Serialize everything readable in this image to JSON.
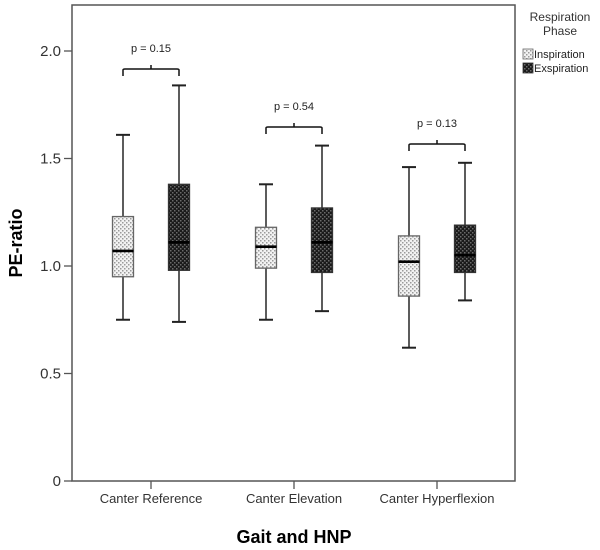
{
  "chart_data": {
    "type": "boxplot",
    "title": "",
    "xlabel": "Gait and HNP",
    "ylabel": "PE-ratio",
    "ylim": [
      0,
      2.2
    ],
    "yticks": [
      0,
      0.5,
      1.0,
      1.5,
      2.0
    ],
    "ytick_labels": [
      "0",
      "0.5",
      "1.0",
      "1.5",
      "2.0"
    ],
    "grid": false,
    "categories": [
      "Canter Reference",
      "Canter Elevation",
      "Canter Hyperflexion"
    ],
    "legend": {
      "title": "Respiration Phase",
      "position": "right",
      "entries": [
        "Inspiration",
        "Exspiration"
      ]
    },
    "series": [
      {
        "name": "Inspiration",
        "fill": "#d9d9d9",
        "pattern": "light-dotted",
        "boxes": [
          {
            "min": 0.75,
            "q1": 0.95,
            "median": 1.07,
            "q3": 1.23,
            "max": 1.61
          },
          {
            "min": 0.75,
            "q1": 0.99,
            "median": 1.09,
            "q3": 1.18,
            "max": 1.38
          },
          {
            "min": 0.62,
            "q1": 0.86,
            "median": 1.02,
            "q3": 1.14,
            "max": 1.46
          }
        ]
      },
      {
        "name": "Exspiration",
        "fill": "#2a2a2a",
        "pattern": "dark-dotted",
        "boxes": [
          {
            "min": 0.74,
            "q1": 0.98,
            "median": 1.11,
            "q3": 1.38,
            "max": 1.84
          },
          {
            "min": 0.79,
            "q1": 0.97,
            "median": 1.11,
            "q3": 1.27,
            "max": 1.56
          },
          {
            "min": 0.84,
            "q1": 0.97,
            "median": 1.05,
            "q3": 1.19,
            "max": 1.48
          }
        ]
      }
    ],
    "annotations": [
      {
        "category": "Canter Reference",
        "text": "p = 0.15"
      },
      {
        "category": "Canter Elevation",
        "text": "p = 0.54"
      },
      {
        "category": "Canter Hyperflexion",
        "text": "p = 0.13"
      }
    ]
  }
}
